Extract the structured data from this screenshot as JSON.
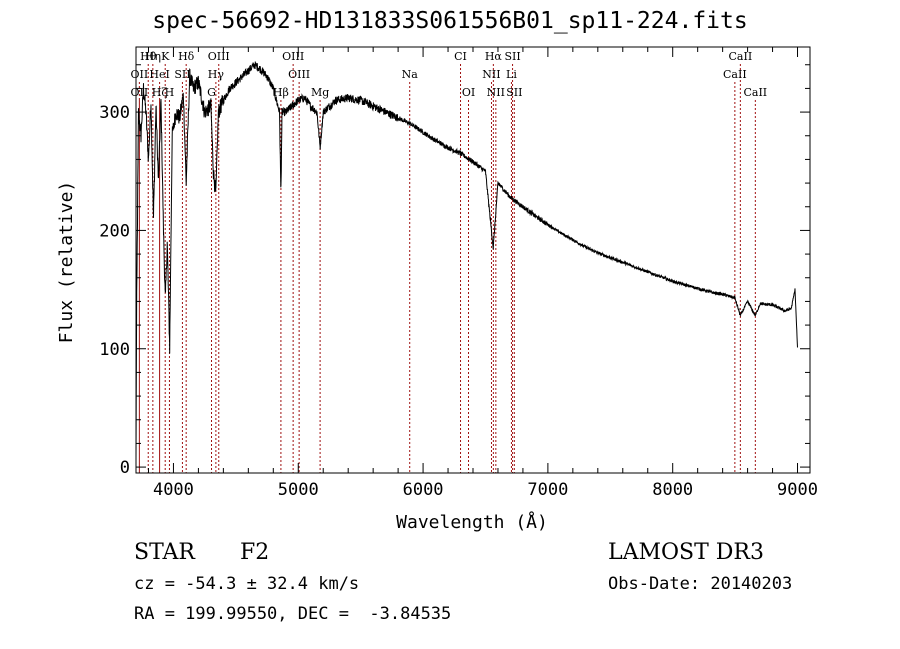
{
  "chart_data": {
    "type": "line",
    "title": "spec-56692-HD131833S061556B01_sp11-224.fits",
    "xlabel": "Wavelength (Å)",
    "ylabel": "Flux (relative)",
    "xlim": [
      3700,
      9100
    ],
    "ylim": [
      -5,
      355
    ],
    "x_ticks": [
      4000,
      5000,
      6000,
      7000,
      8000,
      9000
    ],
    "x_tick_labels": [
      "4000",
      "5000",
      "6000",
      "7000",
      "8000",
      "9000"
    ],
    "y_ticks": [
      0,
      100,
      200,
      300
    ],
    "y_tick_labels": [
      "0",
      "100",
      "200",
      "300"
    ],
    "series": [
      {
        "name": "spectrum",
        "anchors_x": [
          3700,
          3705,
          3720,
          3740,
          3760,
          3780,
          3800,
          3820,
          3840,
          3860,
          3880,
          3900,
          3920,
          3935,
          3950,
          3970,
          3990,
          4020,
          4050,
          4080,
          4102,
          4130,
          4160,
          4200,
          4250,
          4300,
          4320,
          4340,
          4360,
          4400,
          4450,
          4500,
          4550,
          4600,
          4650,
          4700,
          4750,
          4800,
          4850,
          4861,
          4870,
          4900,
          4950,
          5000,
          5050,
          5100,
          5150,
          5175,
          5200,
          5300,
          5400,
          5500,
          5600,
          5700,
          5800,
          5900,
          6000,
          6100,
          6200,
          6300,
          6400,
          6500,
          6562,
          6600,
          6700,
          6800,
          6900,
          7000,
          7100,
          7200,
          7300,
          7400,
          7500,
          7600,
          7700,
          7800,
          7900,
          8000,
          8100,
          8200,
          8300,
          8400,
          8498,
          8542,
          8600,
          8662,
          8700,
          8800,
          8900,
          8950,
          8980,
          9000
        ],
        "anchors_y": [
          5,
          130,
          300,
          280,
          320,
          300,
          260,
          310,
          210,
          305,
          240,
          310,
          200,
          140,
          190,
          100,
          280,
          300,
          295,
          315,
          240,
          330,
          320,
          325,
          300,
          305,
          250,
          230,
          300,
          310,
          320,
          325,
          330,
          335,
          340,
          336,
          330,
          320,
          300,
          230,
          300,
          300,
          305,
          310,
          312,
          305,
          300,
          270,
          300,
          310,
          312,
          310,
          305,
          300,
          295,
          290,
          283,
          276,
          270,
          265,
          258,
          250,
          185,
          240,
          228,
          220,
          212,
          205,
          198,
          192,
          186,
          181,
          177,
          173,
          169,
          165,
          161,
          157,
          154,
          151,
          148,
          146,
          143,
          128,
          140,
          128,
          138,
          137,
          132,
          134,
          150,
          100
        ]
      }
    ],
    "line_markers": [
      {
        "label": "Hθ",
        "x": 3798,
        "row": 1
      },
      {
        "label": "Hη",
        "x": 3835,
        "row": 1
      },
      {
        "label": "K",
        "x": 3934,
        "row": 1
      },
      {
        "label": "Hδ",
        "x": 4102,
        "row": 1
      },
      {
        "label": "OIII",
        "x": 4363,
        "row": 1
      },
      {
        "label": "OIII",
        "x": 4959,
        "row": 1
      },
      {
        "label": "CI",
        "x": 6300,
        "row": 1
      },
      {
        "label": "Hα",
        "x": 6563,
        "row": 1
      },
      {
        "label": "SII",
        "x": 6717,
        "row": 1
      },
      {
        "label": "CaII",
        "x": 8542,
        "row": 1
      },
      {
        "label": "OII",
        "x": 3727,
        "row": 2
      },
      {
        "label": "HeI",
        "x": 3889,
        "row": 2
      },
      {
        "label": "SII",
        "x": 4072,
        "row": 2
      },
      {
        "label": "Hγ",
        "x": 4340,
        "row": 2
      },
      {
        "label": "OIII",
        "x": 5007,
        "row": 2
      },
      {
        "label": "Na",
        "x": 5893,
        "row": 2
      },
      {
        "label": "NII",
        "x": 6548,
        "row": 2
      },
      {
        "label": "Li",
        "x": 6708,
        "row": 2
      },
      {
        "label": "CaII",
        "x": 8498,
        "row": 2
      },
      {
        "label": "OII",
        "x": 3727,
        "row": 3
      },
      {
        "label": "Hζ",
        "x": 3889,
        "row": 3
      },
      {
        "label": "H",
        "x": 3968,
        "row": 3
      },
      {
        "label": "G",
        "x": 4305,
        "row": 3
      },
      {
        "label": "Hβ",
        "x": 4861,
        "row": 3
      },
      {
        "label": "Mg",
        "x": 5175,
        "row": 3
      },
      {
        "label": "OI",
        "x": 6364,
        "row": 3
      },
      {
        "label": "NII",
        "x": 6583,
        "row": 3
      },
      {
        "label": "SII",
        "x": 6731,
        "row": 3
      },
      {
        "label": "CaII",
        "x": 8662,
        "row": 3
      }
    ],
    "marker_color": "#a01010",
    "line_color": "#000000"
  },
  "info": {
    "object_class": "STAR",
    "subclass": "F2",
    "survey": "LAMOST DR3",
    "cz": "cz = -54.3 ± 32.4 km/s",
    "obs_date": "Obs-Date: 20140203",
    "coords": "RA = 199.99550, DEC =  -3.84535"
  }
}
